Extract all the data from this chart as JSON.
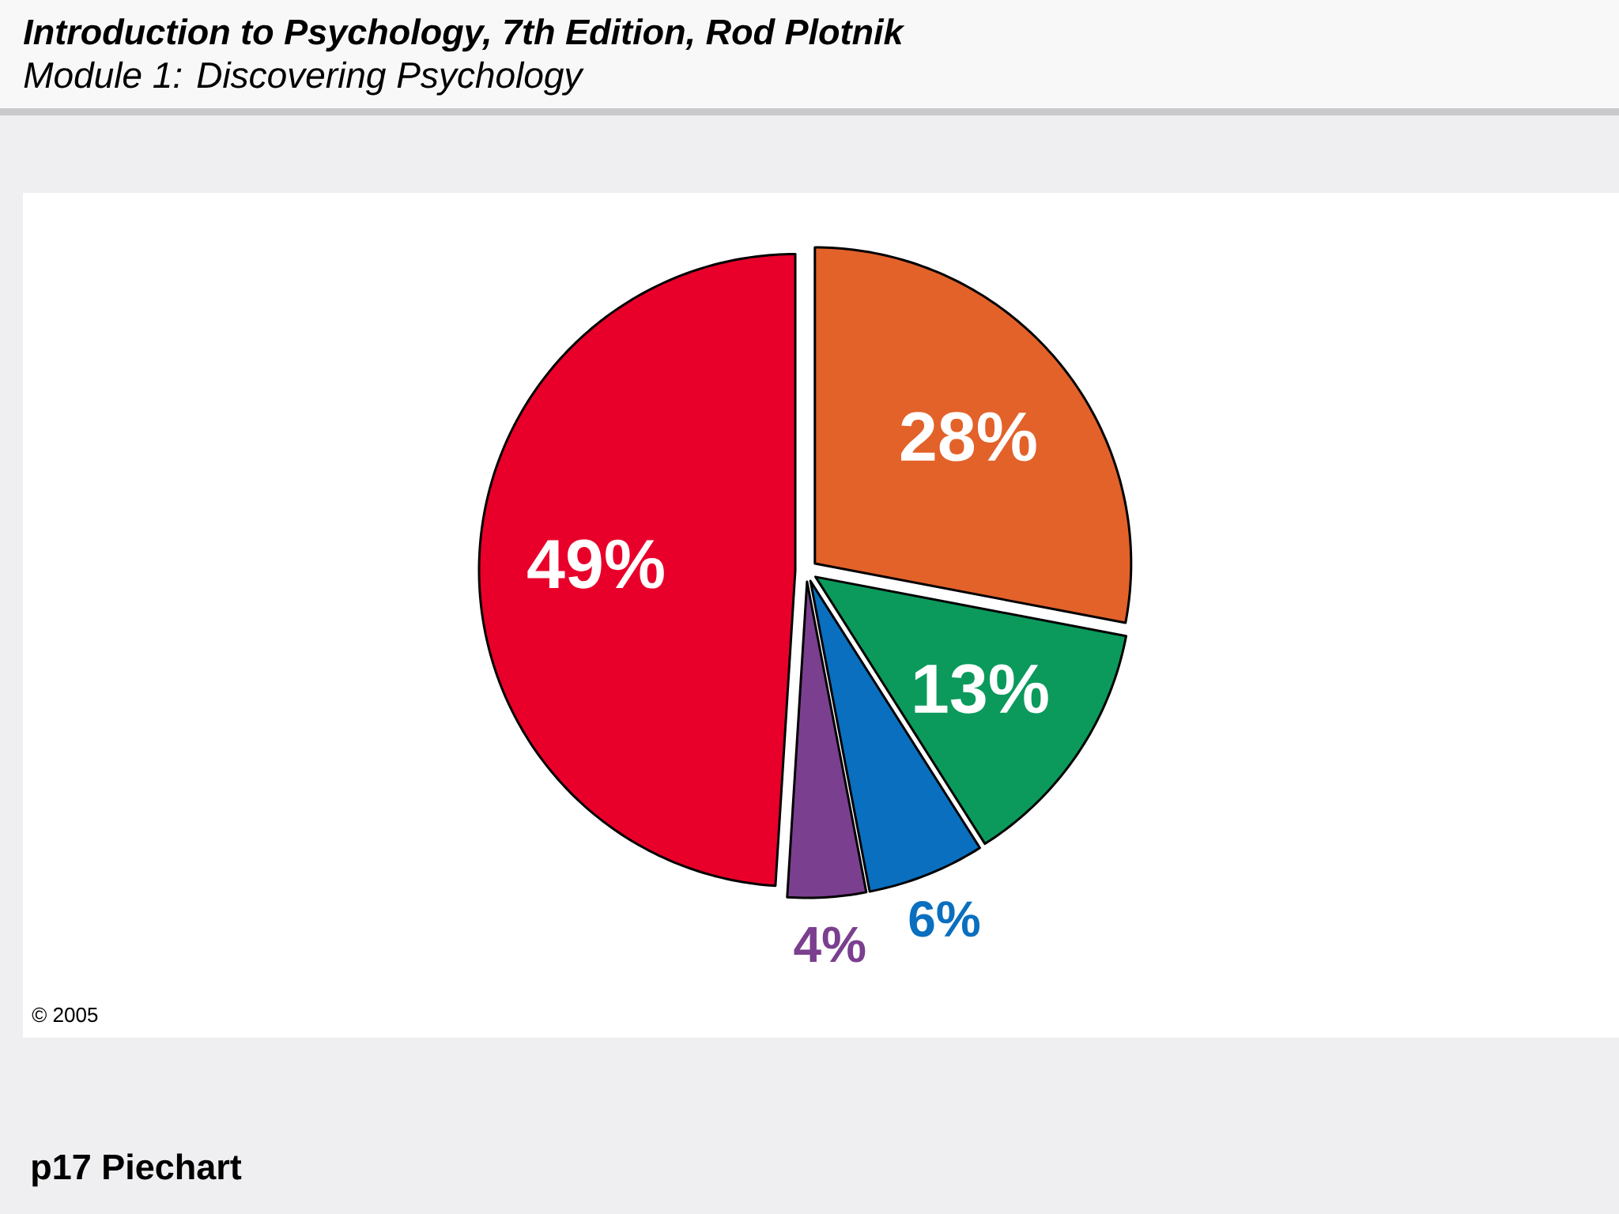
{
  "chart_data": {
    "type": "pie",
    "title": "Introduction to Psychology, 7th Edition, Rod Plotnik",
    "subtitle": "Module 1:  Discovering Psychology",
    "categories": [
      null,
      null,
      null,
      null,
      null
    ],
    "values": [
      28,
      13,
      6,
      4,
      49
    ],
    "colors": [
      "#e2622a",
      "#0b9a5c",
      "#0a6fbf",
      "#7b3f8f",
      "#e8002a"
    ],
    "value_labels": [
      "28%",
      "13%",
      "6%",
      "4%",
      "49%"
    ],
    "annotations": [
      "© 2005",
      "p17 Piechart"
    ]
  }
}
